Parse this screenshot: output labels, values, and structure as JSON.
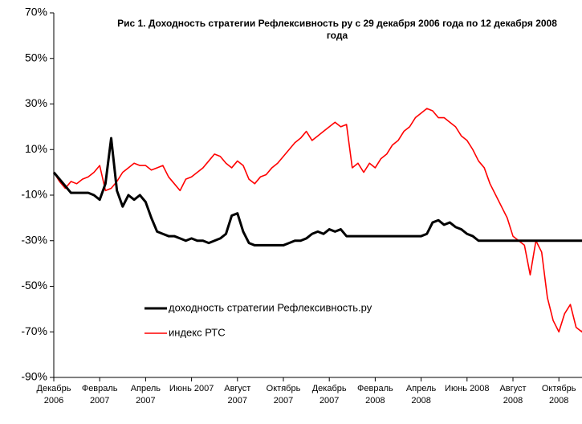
{
  "chart_data": {
    "type": "line",
    "title": "Рис 1. Доходность стратегии Рефлексивность ру с 29 декабря 2006 года по 12 декабря 2008 года",
    "categories": [
      "Декабрь 2006",
      null,
      null,
      null,
      null,
      null,
      null,
      null,
      "Февраль 2007",
      null,
      null,
      null,
      null,
      null,
      null,
      null,
      "Апрель 2007",
      null,
      null,
      null,
      null,
      null,
      null,
      null,
      "Июнь 2007",
      null,
      null,
      null,
      null,
      null,
      null,
      null,
      "Август 2007",
      null,
      null,
      null,
      null,
      null,
      null,
      null,
      "Октябрь 2007",
      null,
      null,
      null,
      null,
      null,
      null,
      null,
      "Декабрь 2007",
      null,
      null,
      null,
      null,
      null,
      null,
      null,
      "Февраль 2008",
      null,
      null,
      null,
      null,
      null,
      null,
      null,
      "Апрель 2008",
      null,
      null,
      null,
      null,
      null,
      null,
      null,
      "Июнь 2008",
      null,
      null,
      null,
      null,
      null,
      null,
      null,
      "Август 2008",
      null,
      null,
      null,
      null,
      null,
      null,
      null,
      "Октябрь 2008",
      null,
      null,
      null,
      null,
      null
    ],
    "series": [
      {
        "name": "доходность стратегии Рефлексивность.ру",
        "color": "#000000",
        "values": [
          0,
          -3,
          -6,
          -9,
          -9,
          -9,
          -9,
          -10,
          -12,
          -5,
          15,
          -8,
          -15,
          -10,
          -12,
          -10,
          -13,
          -20,
          -26,
          -27,
          -28,
          -28,
          -29,
          -30,
          -29,
          -30,
          -30,
          -31,
          -30,
          -29,
          -27,
          -19,
          -18,
          -26,
          -31,
          -32,
          -32,
          -32,
          -32,
          -32,
          -32,
          -31,
          -30,
          -30,
          -29,
          -27,
          -26,
          -27,
          -25,
          -26,
          -25,
          -28,
          -28,
          -28,
          -28,
          -28,
          -28,
          -28,
          -28,
          -28,
          -28,
          -28,
          -28,
          -28,
          -28,
          -27,
          -22,
          -21,
          -23,
          -22,
          -24,
          -25,
          -27,
          -28,
          -30,
          -30,
          -30,
          -30,
          -30,
          -30,
          -30,
          -30,
          -30,
          -30,
          -30,
          -30,
          -30,
          -30,
          -30,
          -30,
          -30,
          -30,
          -30,
          -30
        ]
      },
      {
        "name": "индекс РТС",
        "color": "#ff0000",
        "values": [
          0,
          -4,
          -7,
          -4,
          -5,
          -3,
          -2,
          0,
          3,
          -8,
          -7,
          -4,
          0,
          2,
          4,
          3,
          3,
          1,
          2,
          3,
          -2,
          -5,
          -8,
          -3,
          -2,
          0,
          2,
          5,
          8,
          7,
          4,
          2,
          5,
          3,
          -3,
          -5,
          -2,
          -1,
          2,
          4,
          7,
          10,
          13,
          15,
          18,
          14,
          16,
          18,
          20,
          22,
          20,
          21,
          2,
          4,
          0,
          4,
          2,
          6,
          8,
          12,
          14,
          18,
          20,
          24,
          26,
          28,
          27,
          24,
          24,
          22,
          20,
          16,
          14,
          10,
          5,
          2,
          -5,
          -10,
          -15,
          -20,
          -28,
          -30,
          -32,
          -45,
          -30,
          -35,
          -55,
          -65,
          -70,
          -62,
          -58,
          -68,
          -70,
          -64
        ]
      }
    ],
    "ylim": [
      -90,
      70
    ],
    "yticks": [
      {
        "value": -90,
        "label": "-90%"
      },
      {
        "value": -70,
        "label": "-70%"
      },
      {
        "value": -50,
        "label": "-50%"
      },
      {
        "value": -30,
        "label": "-30%"
      },
      {
        "value": -10,
        "label": "-10%"
      },
      {
        "value": 10,
        "label": "10%"
      },
      {
        "value": 30,
        "label": "30%"
      },
      {
        "value": 50,
        "label": "50%"
      },
      {
        "value": 70,
        "label": "70%"
      }
    ],
    "legend": "lower left"
  }
}
